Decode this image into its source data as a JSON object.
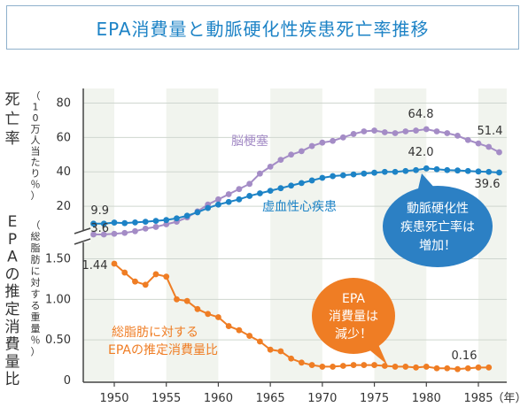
{
  "title": "EPA消費量と動脈硬化性疾患死亡率推移",
  "chart_data": [
    {
      "type": "line",
      "panel": "top",
      "ylabel_main": "死亡率",
      "ylabel_sub": "（10万人当たり％）",
      "yticks": [
        "20",
        "40",
        "60",
        "80"
      ],
      "ylim": [
        0,
        85
      ],
      "x": [
        1948,
        1949,
        1950,
        1951,
        1952,
        1953,
        1954,
        1955,
        1956,
        1957,
        1958,
        1959,
        1960,
        1961,
        1962,
        1963,
        1964,
        1965,
        1966,
        1967,
        1968,
        1969,
        1970,
        1971,
        1972,
        1973,
        1974,
        1975,
        1976,
        1977,
        1978,
        1979,
        1980,
        1981,
        1982,
        1983,
        1984,
        1985,
        1986,
        1987
      ],
      "series": [
        {
          "name": "脳梗塞",
          "color": "#a48cc6",
          "values": [
            3.6,
            3.6,
            4.0,
            4.5,
            5.5,
            7.0,
            8.0,
            9.5,
            11.0,
            13.5,
            17.0,
            21.0,
            24.0,
            27.0,
            30.0,
            33.0,
            39.0,
            43.0,
            47.0,
            50.0,
            52.0,
            55.0,
            57.0,
            58.0,
            60.0,
            62.0,
            63.5,
            64.0,
            63.0,
            62.5,
            63.5,
            64.0,
            64.8,
            63.5,
            62.5,
            61.0,
            58.5,
            56.5,
            54.5,
            51.4
          ]
        },
        {
          "name": "虚血性心疾患",
          "color": "#1d83c6",
          "values": [
            9.9,
            9.9,
            10.5,
            10.2,
            10.6,
            11.0,
            11.5,
            12.0,
            13.0,
            14.5,
            16.5,
            19.0,
            21.0,
            22.5,
            24.0,
            26.0,
            27.5,
            29.0,
            30.5,
            32.0,
            33.5,
            35.0,
            36.5,
            37.5,
            38.0,
            38.5,
            39.0,
            39.5,
            40.0,
            40.0,
            40.5,
            41.0,
            42.0,
            41.5,
            41.0,
            40.8,
            40.5,
            40.2,
            40.0,
            39.6
          ]
        }
      ],
      "annotations": [
        "9.9",
        "3.6",
        "64.8",
        "42.0",
        "51.4",
        "39.6"
      ],
      "series_labels": [
        "脳梗塞",
        "虚血性心疾患"
      ],
      "bubble": {
        "lines": [
          "動脈硬化性",
          "疾患死亡率は",
          "増加！"
        ],
        "color": "#2c80c4"
      }
    },
    {
      "type": "line",
      "panel": "bottom",
      "ylabel_main": "EPAの推定消費量比",
      "ylabel_sub": "（総脂肪に対する重量％）",
      "yticks": [
        "0",
        "0.50",
        "1.00",
        "1.50"
      ],
      "ylim": [
        0,
        1.6
      ],
      "x": [
        1950,
        1951,
        1952,
        1953,
        1954,
        1955,
        1956,
        1957,
        1958,
        1959,
        1960,
        1961,
        1962,
        1963,
        1964,
        1965,
        1966,
        1967,
        1968,
        1969,
        1970,
        1971,
        1972,
        1973,
        1974,
        1975,
        1976,
        1977,
        1978,
        1979,
        1980,
        1981,
        1982,
        1983,
        1984,
        1985,
        1986
      ],
      "series": [
        {
          "name": "総脂肪に対するEPAの推定消費量比",
          "color": "#ef7d24",
          "values": [
            1.44,
            1.33,
            1.22,
            1.18,
            1.31,
            1.28,
            1.0,
            0.98,
            0.88,
            0.82,
            0.78,
            0.67,
            0.62,
            0.55,
            0.48,
            0.38,
            0.36,
            0.27,
            0.22,
            0.19,
            0.17,
            0.17,
            0.18,
            0.19,
            0.19,
            0.19,
            0.18,
            0.17,
            0.17,
            0.16,
            0.17,
            0.15,
            0.15,
            0.14,
            0.15,
            0.16,
            0.16
          ]
        }
      ],
      "annotations": [
        "1.44",
        "0.16"
      ],
      "series_label": [
        "総脂肪に対する",
        "EPAの推定消費量比"
      ],
      "bubble": {
        "lines": [
          "EPA",
          "消費量は",
          "減少！"
        ],
        "color": "#ef7d24"
      }
    }
  ],
  "xaxis": {
    "ticks": [
      "1950",
      "1955",
      "1960",
      "1965",
      "1970",
      "1975",
      "1980",
      "1985"
    ],
    "unit": "（年）"
  }
}
